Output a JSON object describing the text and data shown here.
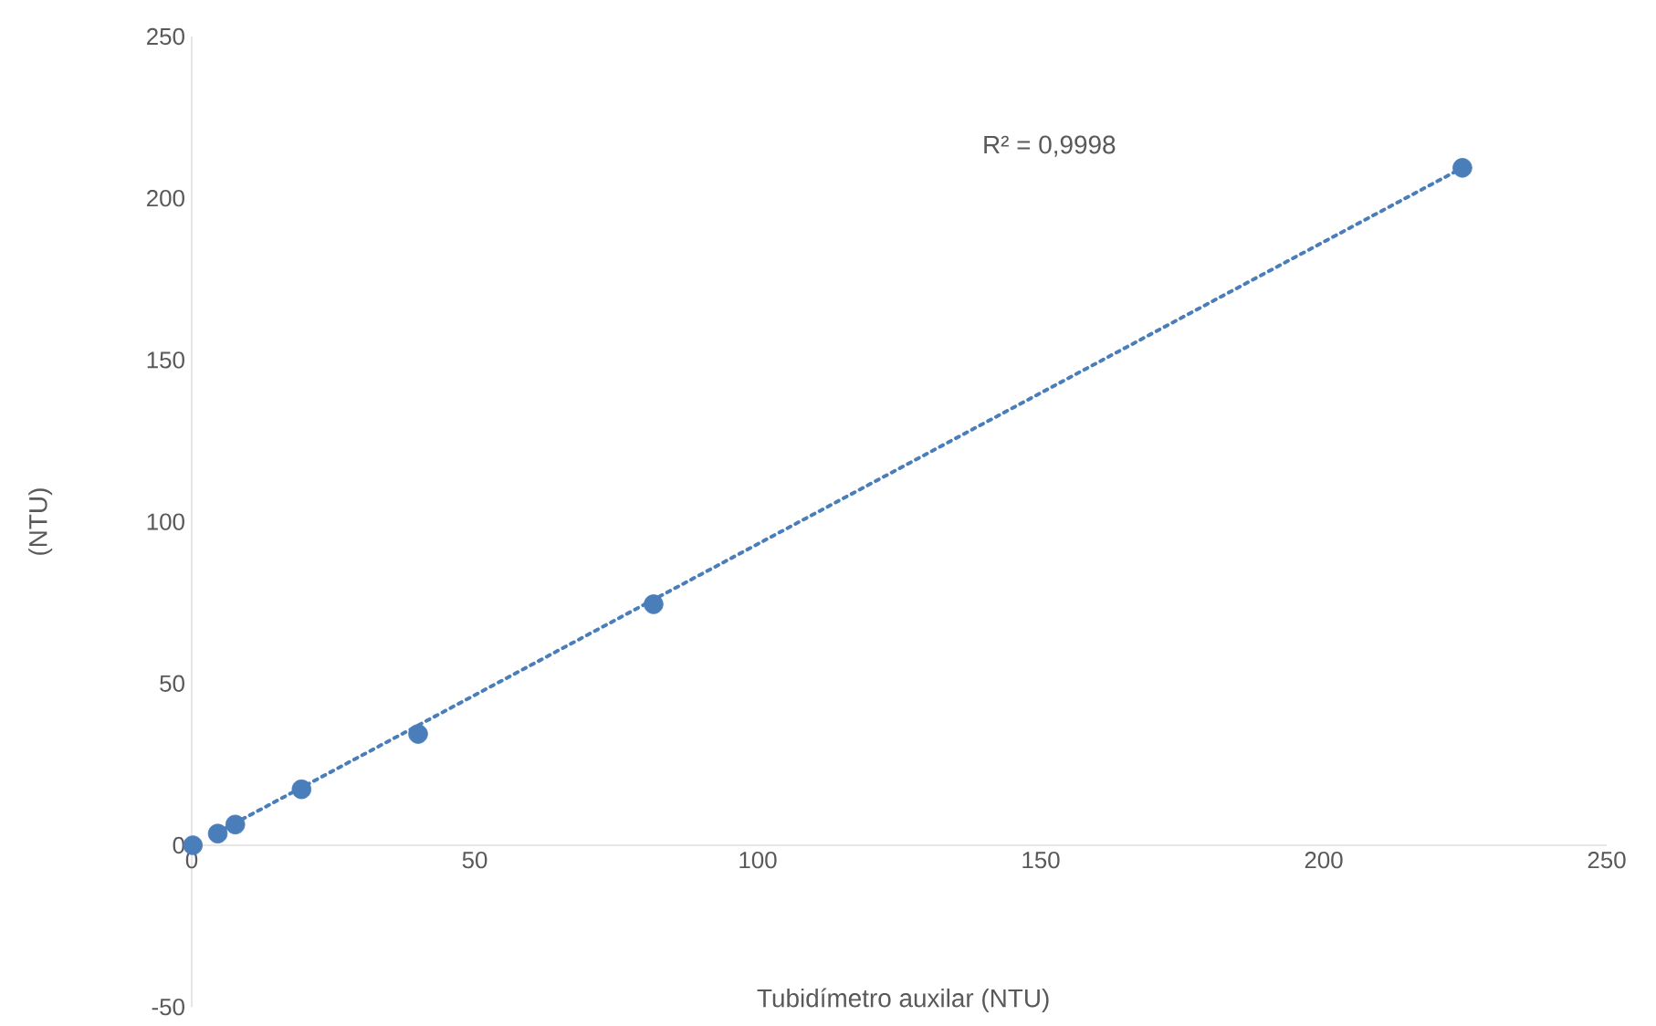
{
  "chart_data": {
    "type": "scatter",
    "xlabel": "Tubidímetro auxilar (NTU)",
    "ylabel": "(NTU)",
    "xlim": [
      0,
      250
    ],
    "ylim": [
      -50,
      250
    ],
    "xticks": [
      0,
      50,
      100,
      150,
      200,
      250
    ],
    "yticks": [
      -50,
      0,
      50,
      100,
      150,
      200,
      250
    ],
    "grid": false,
    "marker": "circle",
    "series": [
      {
        "color": "#4a7ebb",
        "x": [
          0.2,
          4.6,
          7.7,
          19.4,
          40,
          81.6,
          224.5
        ],
        "values": [
          0,
          3.6,
          6.4,
          17.3,
          34.4,
          74.5,
          209.4
        ]
      },
      {
        "type": "line",
        "line_style": "dotted",
        "marker": "none",
        "color": "#4a7ebb",
        "x": [
          4.6,
          224.5
        ],
        "values": [
          4.0,
          209.4
        ]
      }
    ],
    "annotations": [
      "R² = 0,9998"
    ]
  }
}
